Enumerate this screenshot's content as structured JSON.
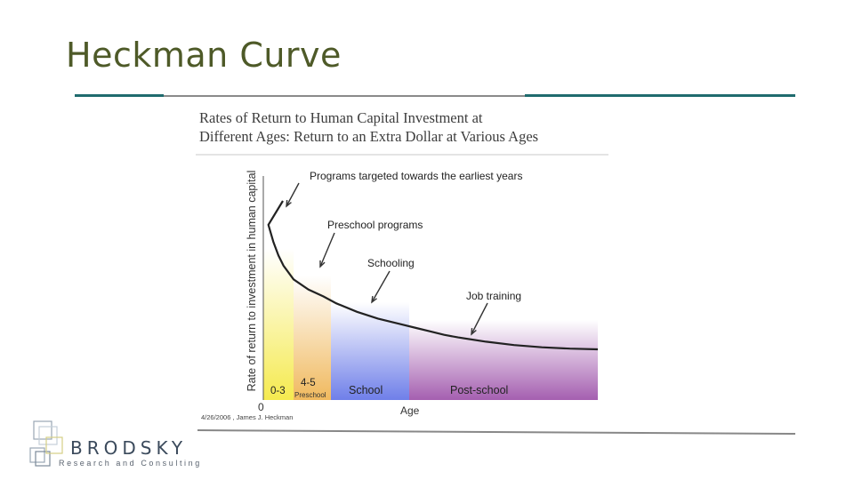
{
  "slide": {
    "title": "Heckman Curve"
  },
  "brand": {
    "name": "BRODSKY",
    "tagline": "Research and Consulting"
  },
  "colors": {
    "title": "#4e5a28",
    "rule_teal": "#1f6b6e",
    "rule_gray": "#8a8a8a",
    "curve": "#222222"
  },
  "chart_data": {
    "type": "line",
    "title_line1": "Rates of Return to Human Capital Investment at",
    "title_line2": "Different Ages: Return to an Extra Dollar at Various Ages",
    "ylabel": "Rate of return to investment in human capital",
    "xlabel": "Age",
    "origin_label": "0",
    "footnote": "4/26/2006 , James J. Heckman",
    "x": [
      0,
      0.5,
      1,
      1.5,
      2,
      3,
      4,
      5,
      6,
      8,
      10,
      12,
      14,
      16,
      18,
      20,
      24,
      28,
      32,
      36,
      40
    ],
    "y": [
      100,
      86,
      76,
      68,
      62,
      54,
      48,
      44,
      40,
      35,
      31,
      28,
      25.5,
      23.5,
      21.5,
      20,
      17.5,
      15.5,
      14.2,
      13.4,
      13.0
    ],
    "xlim": [
      0,
      40
    ],
    "ylim": [
      0,
      100
    ],
    "stages": [
      {
        "label": "0-3",
        "sublabel": "",
        "start": 0,
        "end": 3,
        "color": "#f5ea4f"
      },
      {
        "label": "4-5",
        "sublabel": "Preschool",
        "start": 3,
        "end": 5.5,
        "color": "#f0b95e"
      },
      {
        "label": "School",
        "sublabel": "",
        "start": 5.5,
        "end": 13,
        "color": "#6f7fe9"
      },
      {
        "label": "Post-school",
        "sublabel": "",
        "start": 13,
        "end": 40,
        "color": "#a55fb0"
      }
    ],
    "annotations": [
      {
        "text": "Programs targeted towards the earliest years",
        "x": 0.3
      },
      {
        "text": "Preschool programs",
        "x": 4.2
      },
      {
        "text": "Schooling",
        "x": 9.5
      },
      {
        "text": "Job training",
        "x": 20
      }
    ]
  }
}
